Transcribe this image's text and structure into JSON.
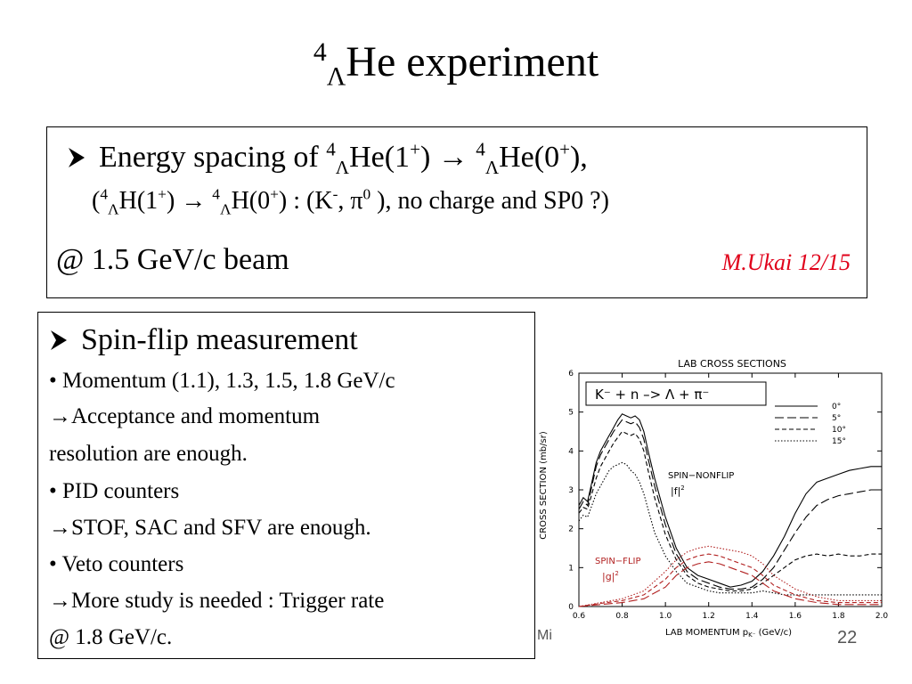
{
  "slide": {
    "title_pre": "4",
    "title_sub": "Λ",
    "title_main": "He experiment",
    "footer_left": "Mi",
    "page_number": "22"
  },
  "box1": {
    "line1": {
      "lead": "Energy spacing of ",
      "sup1": "4",
      "sub1": "Λ",
      "he1": "He(1",
      "plus1": "+",
      "arrow": ") → ",
      "sup2": "4",
      "sub2": "Λ",
      "he2": "He(0",
      "plus2": "+",
      "tail": "),"
    },
    "line2": {
      "open": "(",
      "sup1": "4",
      "sub1": "Λ",
      "h1": "H(1",
      "plus1": "+",
      "arrow": ") → ",
      "sup2": "4",
      "sub2": "Λ",
      "h2": "H(0",
      "plus2": "+",
      "mid": ") : (K",
      "minus": "-",
      "comma": ", π",
      "zero": "0",
      "tail": " ),  no charge and SP0 ?)"
    },
    "line3": "@ 1.5 GeV/c beam",
    "author": "M.Ukai 12/15"
  },
  "box2": {
    "heading": "Spin-flip measurement",
    "lines": [
      "• Momentum (1.1), 1.3, 1.5, 1.8 GeV/c",
      "→Acceptance and momentum",
      "resolution are enough.",
      "• PID counters",
      "→STOF, SAC and SFV are enough.",
      "• Veto counters",
      "→More study is needed : Trigger rate",
      "@ 1.8 GeV/c."
    ]
  },
  "chart_data": {
    "type": "line",
    "title": "LAB CROSS SECTIONS",
    "reaction_label": "K⁻ + n –> Λ + π⁻",
    "xlabel": "LAB MOMENTUM p",
    "xlabel_sub": "K⁻",
    "xlabel_unit": " (GeV/c)",
    "ylabel": "CROSS SECTION (mb/sr)",
    "xlim": [
      0.6,
      2.0
    ],
    "ylim": [
      0,
      6
    ],
    "xticks": [
      "0.6",
      "0.8",
      "1.0",
      "1.2",
      "1.4",
      "1.6",
      "1.8",
      "2.0"
    ],
    "yticks": [
      "0",
      "1",
      "2",
      "3",
      "4",
      "5",
      "6"
    ],
    "legend_placement": "top-right",
    "annotation_nonflip": "SPIN−NONFLIP",
    "annotation_nonflip_f": "|f|",
    "annotation_nonflip_exp": "2",
    "annotation_flip": "SPIN−FLIP",
    "annotation_flip_g": "|g|",
    "annotation_flip_exp": "2",
    "flip_color": "#b22222",
    "series": [
      {
        "name": "0°",
        "style": "solid",
        "color": "#000000",
        "x": [
          0.6,
          0.62,
          0.64,
          0.66,
          0.68,
          0.7,
          0.72,
          0.74,
          0.76,
          0.78,
          0.8,
          0.82,
          0.84,
          0.86,
          0.88,
          0.9,
          0.92,
          0.95,
          1.0,
          1.05,
          1.1,
          1.15,
          1.2,
          1.25,
          1.3,
          1.35,
          1.4,
          1.45,
          1.5,
          1.55,
          1.6,
          1.65,
          1.7,
          1.75,
          1.8,
          1.85,
          1.9,
          1.95,
          2.0
        ],
        "y": [
          2.6,
          2.8,
          2.7,
          3.2,
          3.7,
          4.0,
          4.2,
          4.4,
          4.6,
          4.8,
          4.95,
          4.9,
          4.85,
          4.9,
          4.8,
          4.5,
          4.0,
          3.3,
          2.3,
          1.5,
          1.0,
          0.8,
          0.7,
          0.6,
          0.5,
          0.55,
          0.65,
          0.9,
          1.3,
          1.8,
          2.4,
          2.9,
          3.2,
          3.3,
          3.4,
          3.5,
          3.55,
          3.6,
          3.6
        ]
      },
      {
        "name": "5°",
        "style": "longdash",
        "color": "#000000",
        "x": [
          0.6,
          0.62,
          0.64,
          0.66,
          0.68,
          0.7,
          0.72,
          0.74,
          0.76,
          0.78,
          0.8,
          0.82,
          0.84,
          0.86,
          0.88,
          0.9,
          0.92,
          0.95,
          1.0,
          1.05,
          1.1,
          1.15,
          1.2,
          1.25,
          1.3,
          1.35,
          1.4,
          1.45,
          1.5,
          1.55,
          1.6,
          1.65,
          1.7,
          1.75,
          1.8,
          1.85,
          1.9,
          1.95,
          2.0
        ],
        "y": [
          2.5,
          2.7,
          2.6,
          3.1,
          3.6,
          3.9,
          4.1,
          4.3,
          4.5,
          4.65,
          4.8,
          4.75,
          4.7,
          4.75,
          4.6,
          4.3,
          3.8,
          3.1,
          2.1,
          1.35,
          0.9,
          0.7,
          0.6,
          0.5,
          0.45,
          0.45,
          0.5,
          0.7,
          1.0,
          1.45,
          1.9,
          2.3,
          2.6,
          2.75,
          2.85,
          2.9,
          2.95,
          3.0,
          3.0
        ]
      },
      {
        "name": "10°",
        "style": "dashed",
        "color": "#000000",
        "x": [
          0.6,
          0.62,
          0.64,
          0.66,
          0.68,
          0.7,
          0.72,
          0.74,
          0.76,
          0.78,
          0.8,
          0.82,
          0.84,
          0.86,
          0.88,
          0.9,
          0.92,
          0.95,
          1.0,
          1.05,
          1.1,
          1.15,
          1.2,
          1.25,
          1.3,
          1.35,
          1.4,
          1.45,
          1.5,
          1.55,
          1.6,
          1.65,
          1.7,
          1.75,
          1.8,
          1.85,
          1.9,
          1.95,
          2.0
        ],
        "y": [
          2.4,
          2.55,
          2.5,
          2.9,
          3.3,
          3.6,
          3.8,
          4.0,
          4.2,
          4.35,
          4.5,
          4.45,
          4.4,
          4.45,
          4.3,
          4.0,
          3.5,
          2.8,
          1.85,
          1.2,
          0.8,
          0.6,
          0.5,
          0.45,
          0.4,
          0.4,
          0.45,
          0.6,
          0.8,
          1.0,
          1.2,
          1.3,
          1.35,
          1.3,
          1.35,
          1.3,
          1.3,
          1.35,
          1.35
        ]
      },
      {
        "name": "15°",
        "style": "dotted",
        "color": "#000000",
        "x": [
          0.6,
          0.62,
          0.64,
          0.66,
          0.68,
          0.7,
          0.72,
          0.74,
          0.76,
          0.78,
          0.8,
          0.82,
          0.84,
          0.86,
          0.88,
          0.9,
          0.92,
          0.95,
          1.0,
          1.05,
          1.1,
          1.15,
          1.2,
          1.25,
          1.3,
          1.35,
          1.4,
          1.45,
          1.5,
          1.55,
          1.6,
          1.65,
          1.7,
          1.75,
          1.8,
          1.85,
          1.9,
          1.95,
          2.0
        ],
        "y": [
          2.2,
          2.35,
          2.3,
          2.6,
          2.9,
          3.1,
          3.3,
          3.5,
          3.6,
          3.65,
          3.7,
          3.65,
          3.5,
          3.4,
          3.2,
          2.9,
          2.5,
          1.9,
          1.3,
          0.9,
          0.6,
          0.5,
          0.4,
          0.35,
          0.35,
          0.35,
          0.35,
          0.4,
          0.35,
          0.3,
          0.3,
          0.3,
          0.3,
          0.3,
          0.3,
          0.3,
          0.3,
          0.3,
          0.3
        ]
      },
      {
        "name": "flip 5°",
        "style": "longdash",
        "color": "#b22222",
        "x": [
          0.6,
          0.7,
          0.8,
          0.9,
          1.0,
          1.05,
          1.1,
          1.15,
          1.2,
          1.25,
          1.3,
          1.35,
          1.4,
          1.45,
          1.5,
          1.6,
          1.7,
          1.8,
          1.9,
          2.0
        ],
        "y": [
          0.0,
          0.05,
          0.1,
          0.2,
          0.5,
          0.8,
          1.0,
          1.1,
          1.15,
          1.1,
          1.0,
          0.9,
          0.8,
          0.6,
          0.4,
          0.2,
          0.1,
          0.05,
          0.05,
          0.05
        ]
      },
      {
        "name": "flip 10°",
        "style": "dashed",
        "color": "#b22222",
        "x": [
          0.6,
          0.7,
          0.8,
          0.9,
          1.0,
          1.05,
          1.1,
          1.15,
          1.2,
          1.25,
          1.3,
          1.35,
          1.4,
          1.45,
          1.5,
          1.6,
          1.7,
          1.8,
          1.9,
          2.0
        ],
        "y": [
          0.0,
          0.08,
          0.15,
          0.3,
          0.7,
          1.0,
          1.2,
          1.3,
          1.35,
          1.3,
          1.2,
          1.1,
          1.0,
          0.8,
          0.55,
          0.3,
          0.15,
          0.1,
          0.1,
          0.1
        ]
      },
      {
        "name": "flip 15°",
        "style": "dotted",
        "color": "#b22222",
        "x": [
          0.6,
          0.7,
          0.8,
          0.9,
          1.0,
          1.05,
          1.1,
          1.15,
          1.2,
          1.25,
          1.3,
          1.35,
          1.4,
          1.45,
          1.5,
          1.6,
          1.7,
          1.8,
          1.9,
          2.0
        ],
        "y": [
          0.0,
          0.1,
          0.2,
          0.4,
          0.9,
          1.2,
          1.4,
          1.5,
          1.55,
          1.5,
          1.45,
          1.4,
          1.3,
          1.1,
          0.8,
          0.45,
          0.25,
          0.15,
          0.15,
          0.15
        ]
      }
    ]
  }
}
